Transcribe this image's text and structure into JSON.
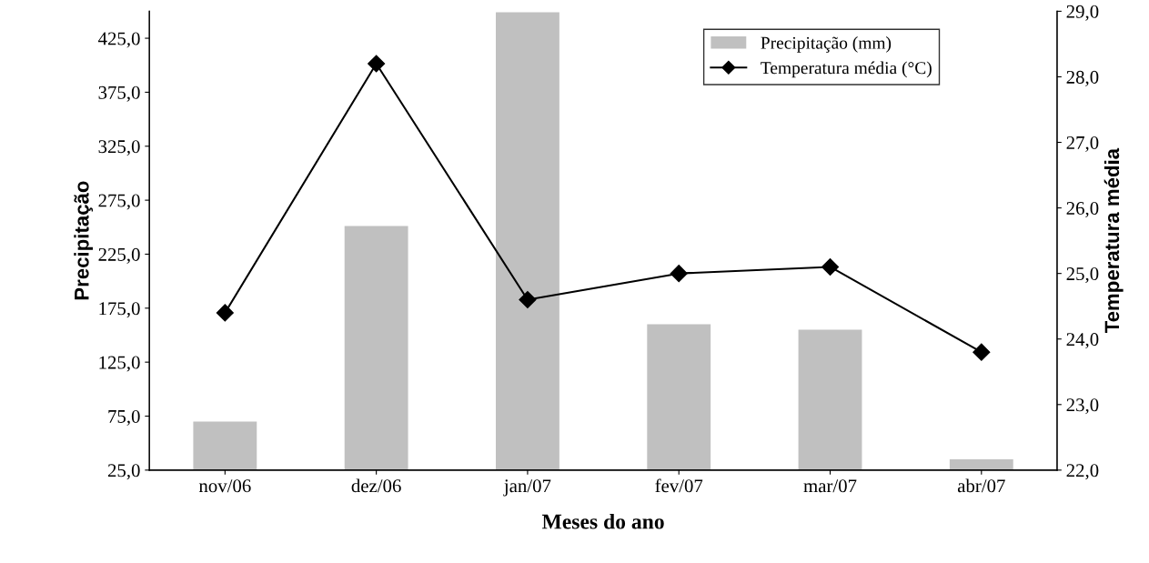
{
  "chart_data": {
    "type": "bar",
    "xlabel": "Meses do ano",
    "ylabel": "Precipitação",
    "y2label": "Temperatura média",
    "categories": [
      "nov/06",
      "dez/06",
      "jan/07",
      "fev/07",
      "mar/07",
      "abr/07"
    ],
    "series": [
      {
        "name": "Precipitação (mm)",
        "color": "#c0c0c0",
        "values": [
          70,
          251,
          449,
          160,
          155,
          35
        ]
      },
      {
        "name": "Temperatura média (°C)",
        "type": "line",
        "axis": "y2",
        "color": "#000000",
        "marker": "diamond",
        "line_style": "solid",
        "values": [
          24.4,
          28.2,
          24.6,
          25.0,
          25.1,
          23.8
        ]
      }
    ],
    "ylim": [
      25,
      450
    ],
    "yticks": [
      {
        "value": 25,
        "label": "25,0"
      },
      {
        "value": 75,
        "label": "75,0"
      },
      {
        "value": 125,
        "label": "125,0"
      },
      {
        "value": 175,
        "label": "175,0"
      },
      {
        "value": 225,
        "label": "225,0"
      },
      {
        "value": 275,
        "label": "275,0"
      },
      {
        "value": 325,
        "label": "325,0"
      },
      {
        "value": 375,
        "label": "375,0"
      },
      {
        "value": 425,
        "label": "425,0"
      }
    ],
    "y2lim": [
      22,
      29
    ],
    "y2ticks": [
      {
        "value": 22,
        "label": "22,0"
      },
      {
        "value": 23,
        "label": "23,0"
      },
      {
        "value": 24,
        "label": "24,0"
      },
      {
        "value": 25,
        "label": "25,0"
      },
      {
        "value": 26,
        "label": "26,0"
      },
      {
        "value": 27,
        "label": "27,0"
      },
      {
        "value": 28,
        "label": "28,0"
      },
      {
        "value": 29,
        "label": "29,0"
      }
    ],
    "legend": "top right",
    "grid": false
  }
}
